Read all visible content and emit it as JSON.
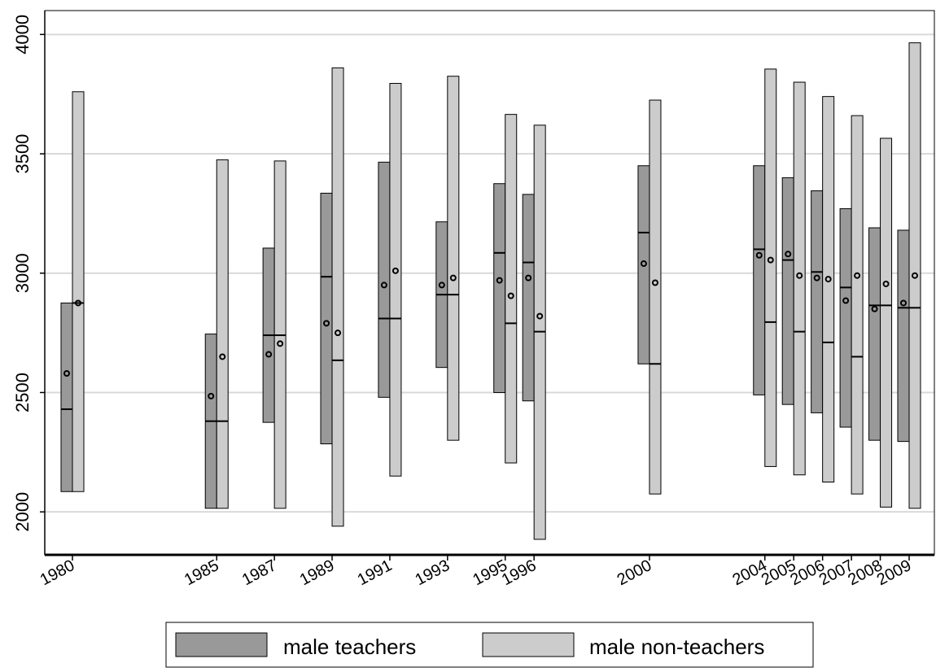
{
  "chart_data": {
    "type": "box",
    "title": "",
    "xlabel": "",
    "ylabel": "",
    "ylim": [
      1820,
      4100
    ],
    "y_ticks": [
      "2000",
      "2500",
      "3000",
      "3500",
      "4000"
    ],
    "grid": "horizontal",
    "legend_position": "bottom",
    "categories": [
      "1980",
      "1985",
      "1987",
      "1989",
      "1991",
      "1993",
      "1995",
      "1996",
      "2000",
      "2004",
      "2005",
      "2006",
      "2007",
      "2008",
      "2009"
    ],
    "series": [
      {
        "name": "male teachers",
        "color": "#999999",
        "boxes": [
          {
            "x": "1980",
            "low": 2085,
            "median": 2430,
            "high": 2875,
            "mean": 2580
          },
          {
            "x": "1985",
            "low": 2015,
            "median": 2380,
            "high": 2745,
            "mean": 2485
          },
          {
            "x": "1987",
            "low": 2375,
            "median": 2740,
            "high": 3105,
            "mean": 2660
          },
          {
            "x": "1989",
            "low": 2285,
            "median": 2985,
            "high": 3335,
            "mean": 2790
          },
          {
            "x": "1991",
            "low": 2480,
            "median": 2810,
            "high": 3465,
            "mean": 2950
          },
          {
            "x": "1993",
            "low": 2605,
            "median": 2910,
            "high": 3215,
            "mean": 2950
          },
          {
            "x": "1995",
            "low": 2500,
            "median": 3085,
            "high": 3375,
            "mean": 2970
          },
          {
            "x": "1996",
            "low": 2465,
            "median": 3045,
            "high": 3330,
            "mean": 2980
          },
          {
            "x": "2000",
            "low": 2620,
            "median": 3170,
            "high": 3450,
            "mean": 3040
          },
          {
            "x": "2004",
            "low": 2490,
            "median": 3100,
            "high": 3450,
            "mean": 3075
          },
          {
            "x": "2005",
            "low": 2450,
            "median": 3055,
            "high": 3400,
            "mean": 3080
          },
          {
            "x": "2006",
            "low": 2415,
            "median": 3005,
            "high": 3345,
            "mean": 2980
          },
          {
            "x": "2007",
            "low": 2355,
            "median": 2940,
            "high": 3270,
            "mean": 2885
          },
          {
            "x": "2008",
            "low": 2300,
            "median": 2865,
            "high": 3190,
            "mean": 2850
          },
          {
            "x": "2009",
            "low": 2295,
            "median": 2855,
            "high": 3180,
            "mean": 2875
          }
        ]
      },
      {
        "name": "male non-teachers",
        "color": "#cccccc",
        "boxes": [
          {
            "x": "1980",
            "low": 2085,
            "median": 2875,
            "high": 3760,
            "mean": 2875
          },
          {
            "x": "1985",
            "low": 2015,
            "median": 2380,
            "high": 3475,
            "mean": 2650
          },
          {
            "x": "1987",
            "low": 2015,
            "median": 2740,
            "high": 3470,
            "mean": 2705
          },
          {
            "x": "1989",
            "low": 1940,
            "median": 2635,
            "high": 3860,
            "mean": 2750
          },
          {
            "x": "1991",
            "low": 2150,
            "median": 2810,
            "high": 3795,
            "mean": 3010
          },
          {
            "x": "1993",
            "low": 2300,
            "median": 2910,
            "high": 3825,
            "mean": 2980
          },
          {
            "x": "1995",
            "low": 2205,
            "median": 2790,
            "high": 3665,
            "mean": 2905
          },
          {
            "x": "1996",
            "low": 1885,
            "median": 2755,
            "high": 3620,
            "mean": 2820
          },
          {
            "x": "2000",
            "low": 2075,
            "median": 2620,
            "high": 3725,
            "mean": 2960
          },
          {
            "x": "2004",
            "low": 2190,
            "median": 2795,
            "high": 3855,
            "mean": 3055
          },
          {
            "x": "2005",
            "low": 2155,
            "median": 2755,
            "high": 3800,
            "mean": 2990
          },
          {
            "x": "2006",
            "low": 2125,
            "median": 2710,
            "high": 3740,
            "mean": 2975
          },
          {
            "x": "2007",
            "low": 2075,
            "median": 2650,
            "high": 3660,
            "mean": 2990
          },
          {
            "x": "2008",
            "low": 2020,
            "median": 2865,
            "high": 3565,
            "mean": 2955
          },
          {
            "x": "2009",
            "low": 2015,
            "median": 2855,
            "high": 3965,
            "mean": 2990
          }
        ]
      }
    ]
  }
}
